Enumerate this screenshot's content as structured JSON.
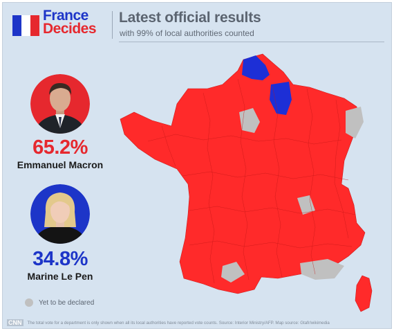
{
  "brand": {
    "line1": "France",
    "line2": "Decides",
    "flag_colors": [
      "#1d35c8",
      "#ffffff",
      "#e6282e"
    ]
  },
  "header": {
    "title": "Latest official results",
    "subtitle": "with 99% of local authorities counted"
  },
  "candidates": [
    {
      "percent": "65.2%",
      "name": "Emmanuel Macron",
      "color": "#e6282e"
    },
    {
      "percent": "34.8%",
      "name": "Marine Le Pen",
      "color": "#1d35c8"
    }
  ],
  "legend": {
    "label": "Yet to be declared",
    "color": "#c0c0c0"
  },
  "map": {
    "macron_color": "#ff2a2a",
    "lepen_color": "#1d2fd6",
    "undeclared_color": "#c0c0c0"
  },
  "footer": {
    "logo": "CNN",
    "note": "The total vote for a department is only shown when all its local authorities have reported vote counts. Source: Interior Ministry/AFP. Map source: Gtafr/wikimedia"
  }
}
